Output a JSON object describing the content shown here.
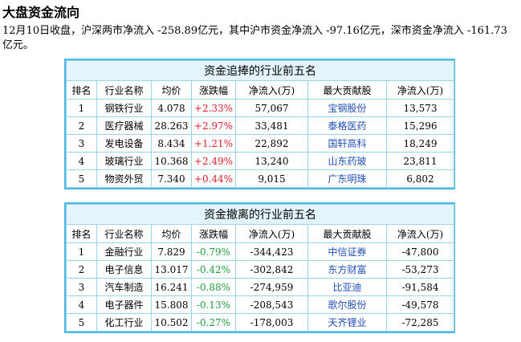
{
  "page": {
    "title": "大盘资金流向",
    "summary": "12月10日收盘，沪深两市净流入 -258.89亿元，其中沪市资金净流入 -97.16亿元，深市资金净流入 -161.73亿元。"
  },
  "columns": [
    "排名",
    "行业名称",
    "均价",
    "涨跌幅",
    "净流入(万)",
    "最大贡献股",
    "净流入(万)"
  ],
  "inflow_table": {
    "caption": "资金追捧的行业前五名",
    "rows": [
      {
        "rank": "1",
        "industry": "钢铁行业",
        "avg_price": "4.078",
        "change": "+2.33%",
        "net_inflow": "57,067",
        "top_stock": "宝钢股份",
        "stock_inflow": "13,573"
      },
      {
        "rank": "2",
        "industry": "医疗器械",
        "avg_price": "28.263",
        "change": "+2.97%",
        "net_inflow": "33,481",
        "top_stock": "泰格医药",
        "stock_inflow": "15,296"
      },
      {
        "rank": "3",
        "industry": "发电设备",
        "avg_price": "8.434",
        "change": "+1.21%",
        "net_inflow": "22,892",
        "top_stock": "国轩高科",
        "stock_inflow": "18,249"
      },
      {
        "rank": "4",
        "industry": "玻璃行业",
        "avg_price": "10.368",
        "change": "+2.49%",
        "net_inflow": "13,240",
        "top_stock": "山东药玻",
        "stock_inflow": "23,811"
      },
      {
        "rank": "5",
        "industry": "物资外贸",
        "avg_price": "7.340",
        "change": "+0.44%",
        "net_inflow": "9,015",
        "top_stock": "广东明珠",
        "stock_inflow": "6,802"
      }
    ]
  },
  "outflow_table": {
    "caption": "资金撤离的行业前五名",
    "rows": [
      {
        "rank": "1",
        "industry": "金融行业",
        "avg_price": "7.829",
        "change": "-0.79%",
        "net_inflow": "-344,423",
        "top_stock": "中信证券",
        "stock_inflow": "-47,800"
      },
      {
        "rank": "2",
        "industry": "电子信息",
        "avg_price": "13.017",
        "change": "-0.42%",
        "net_inflow": "-302,842",
        "top_stock": "东方财富",
        "stock_inflow": "-53,273"
      },
      {
        "rank": "3",
        "industry": "汽车制造",
        "avg_price": "16.241",
        "change": "-0.88%",
        "net_inflow": "-274,959",
        "top_stock": "比亚迪",
        "stock_inflow": "-91,584"
      },
      {
        "rank": "4",
        "industry": "电子器件",
        "avg_price": "15.808",
        "change": "-0.13%",
        "net_inflow": "-208,543",
        "top_stock": "歌尔股份",
        "stock_inflow": "-49,578"
      },
      {
        "rank": "5",
        "industry": "化工行业",
        "avg_price": "10.502",
        "change": "-0.27%",
        "net_inflow": "-178,003",
        "top_stock": "天齐锂业",
        "stock_inflow": "-72,285"
      }
    ]
  },
  "colors": {
    "border": "#4cb7e4",
    "caption_bg": "#e4f4fb",
    "up": "#e0202a",
    "down": "#1a9e3c",
    "stock_link": "#1f4fb8"
  }
}
